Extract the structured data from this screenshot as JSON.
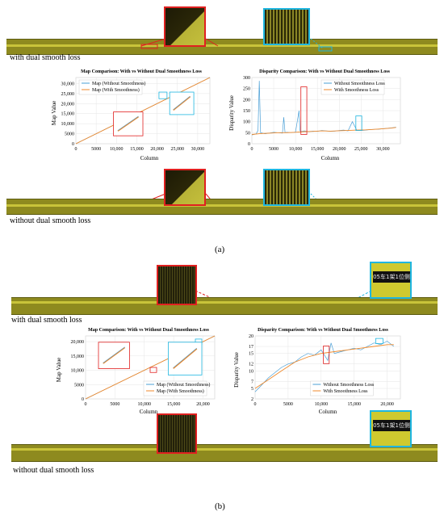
{
  "panel_a": {
    "label": "(a)",
    "caption_top": "with dual smooth loss",
    "caption_bottom": "without dual smooth loss"
  },
  "panel_b": {
    "label": "(b)",
    "caption_top": "with dual smooth loss",
    "caption_bottom": "without dual smooth loss",
    "sign_text": "05车1架1位侧"
  },
  "colors": {
    "map_without": "#4a9fd6",
    "map_with": "#f0892b",
    "highlight_red": "#e02020",
    "highlight_cyan": "#1fb6e0",
    "yellow_scan": "#c8c236"
  },
  "chart_data": [
    {
      "type": "line",
      "title": "Map Comparison: With vs Without Dual Smoothness Loss",
      "xlabel": "Column",
      "ylabel": "Map Value",
      "xticks": [
        "0",
        "5000",
        "10,000",
        "15,000",
        "20,000",
        "25,000",
        "30,000"
      ],
      "yticks": [
        "0",
        "5000",
        "10,000",
        "15,000",
        "20,000",
        "25,000",
        "30,000"
      ],
      "xlim": [
        0,
        33000
      ],
      "ylim": [
        0,
        33000
      ],
      "grid": true,
      "legend": "top-left",
      "series": [
        {
          "name": "Map (Without Smoothness)",
          "x": [
            0,
            33000
          ],
          "values": [
            0,
            33000
          ]
        },
        {
          "name": "Map (With Smoothness)",
          "x": [
            0,
            33000
          ],
          "values": [
            0,
            33000
          ]
        }
      ]
    },
    {
      "type": "line",
      "title": "Disparity Comparison: With vs Without Dual Smoothness Loss",
      "xlabel": "Column",
      "ylabel": "Disparity Value",
      "xticks": [
        "0",
        "5000",
        "10,000",
        "15,000",
        "20,000",
        "25,000",
        "30,000"
      ],
      "yticks": [
        "0",
        "50",
        "100",
        "150",
        "200",
        "250",
        "300"
      ],
      "xlim": [
        0,
        34000
      ],
      "ylim": [
        0,
        300
      ],
      "grid": true,
      "legend": "top-right",
      "series": [
        {
          "name": "Without Smoothness Loss",
          "x": [
            0,
            1000,
            1400,
            1700,
            2000,
            3000,
            4000,
            5000,
            6000,
            7000,
            7300,
            7600,
            8000,
            9000,
            10000,
            10800,
            11000,
            11200,
            12000,
            13000,
            14000,
            15000,
            16000,
            17000,
            18000,
            19000,
            20000,
            21000,
            22000,
            23000,
            24000,
            25000,
            26000,
            27000,
            28000,
            29000,
            30000,
            31000,
            32000,
            33000
          ],
          "values": [
            40,
            45,
            60,
            285,
            50,
            45,
            48,
            52,
            50,
            48,
            120,
            50,
            52,
            50,
            53,
            150,
            60,
            55,
            58,
            55,
            57,
            56,
            60,
            58,
            56,
            57,
            60,
            62,
            58,
            100,
            62,
            60,
            62,
            64,
            65,
            66,
            68,
            70,
            72,
            75
          ]
        },
        {
          "name": "With Smoothness Loss",
          "x": [
            0,
            2000,
            4000,
            6000,
            8000,
            10000,
            12000,
            14000,
            16000,
            18000,
            20000,
            22000,
            24000,
            26000,
            28000,
            30000,
            32000,
            33000
          ],
          "values": [
            42,
            46,
            48,
            50,
            50,
            52,
            55,
            56,
            58,
            57,
            59,
            60,
            62,
            63,
            65,
            68,
            71,
            74
          ]
        }
      ]
    },
    {
      "type": "line",
      "title": "Map Comparison: With vs Without Dual Smoothness Loss",
      "xlabel": "Column",
      "ylabel": "Map Value",
      "xticks": [
        "0",
        "5000",
        "10,000",
        "15,000",
        "20,000"
      ],
      "yticks": [
        "0",
        "5000",
        "10,000",
        "15,000",
        "20,000"
      ],
      "xlim": [
        0,
        22000
      ],
      "ylim": [
        0,
        22000
      ],
      "grid": true,
      "legend": "bottom-right",
      "series": [
        {
          "name": "Map (Without Smoothness)",
          "x": [
            0,
            22000
          ],
          "values": [
            0,
            22000
          ]
        },
        {
          "name": "Map (With Smoothness)",
          "x": [
            0,
            22000
          ],
          "values": [
            0,
            22000
          ]
        }
      ]
    },
    {
      "type": "line",
      "title": "Disparity Comparison: With vs Without Dual Smoothness Loss",
      "xlabel": "Column",
      "ylabel": "Disparity Value",
      "xticks": [
        "0",
        "5000",
        "10,000",
        "15,000",
        "20,000"
      ],
      "yticks": [
        "2",
        "5",
        "7",
        "10",
        "12",
        "15",
        "17",
        "20"
      ],
      "xlim": [
        0,
        22000
      ],
      "ylim": [
        2,
        20
      ],
      "grid": true,
      "legend": "bottom-center",
      "series": [
        {
          "name": "Without Smoothness Loss",
          "x": [
            0,
            1000,
            2000,
            3000,
            4000,
            5000,
            6000,
            7000,
            8000,
            9000,
            10000,
            11000,
            11500,
            12000,
            13000,
            14000,
            15000,
            16000,
            17000,
            18000,
            19000,
            20000,
            21000
          ],
          "values": [
            4,
            6,
            8,
            9.5,
            11,
            12,
            12.5,
            14,
            15,
            14.5,
            16,
            13,
            18,
            15,
            15.5,
            16,
            16.5,
            16,
            17,
            18,
            17.5,
            18.5,
            17
          ]
        },
        {
          "name": "With Smoothness Loss",
          "x": [
            0,
            2000,
            4000,
            6000,
            8000,
            10000,
            12000,
            14000,
            16000,
            18000,
            20000,
            21000
          ],
          "values": [
            5,
            7.5,
            10,
            12.5,
            14,
            15,
            15.5,
            16,
            16.5,
            17,
            17.5,
            17.5
          ]
        }
      ]
    }
  ]
}
